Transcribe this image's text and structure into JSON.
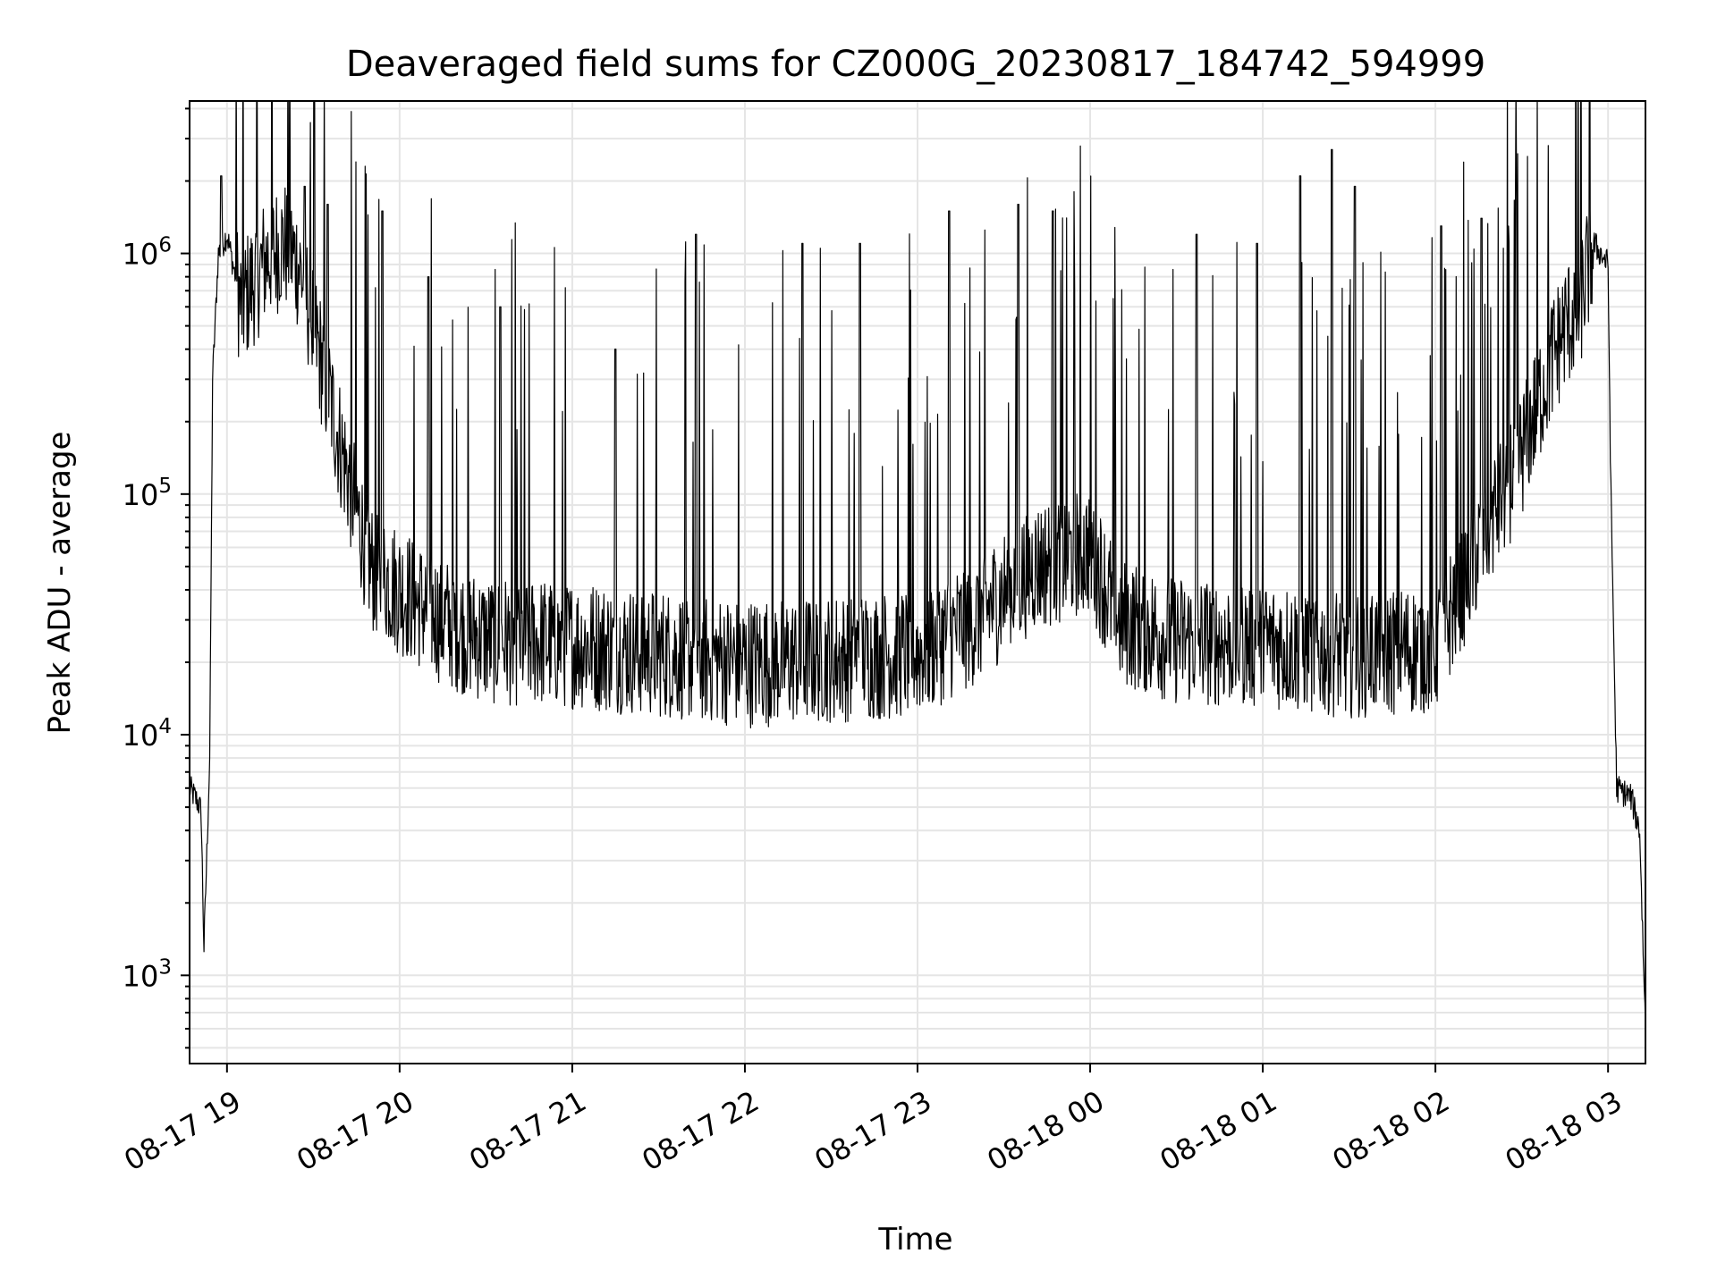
{
  "chart_data": {
    "type": "line",
    "title": "Deaveraged field sums for CZ000G_20230817_184742_594999",
    "xlabel": "Time",
    "ylabel": "Peak ADU - average",
    "yscale": "log",
    "xlim": [
      "2023-08-17 18:47",
      "2023-08-18 03:13"
    ],
    "ylim": [
      430,
      4300000
    ],
    "grid": true,
    "x_ticks": [
      "08-17 19",
      "08-17 20",
      "08-17 21",
      "08-17 22",
      "08-17 23",
      "08-18 00",
      "08-18 01",
      "08-18 02",
      "08-18 03"
    ],
    "y_ticks": [
      {
        "value": 1000,
        "base": "10",
        "exp": "3"
      },
      {
        "value": 10000,
        "base": "10",
        "exp": "4"
      },
      {
        "value": 100000,
        "base": "10",
        "exp": "5"
      },
      {
        "value": 1000000,
        "base": "10",
        "exp": "6"
      }
    ],
    "line_color": "#000000",
    "grid_color": "#e5e5e5",
    "series": [
      {
        "x": [
          "2023-08-17 18:47",
          "2023-08-17 18:50",
          "2023-08-17 18:51",
          "2023-08-17 18:52",
          "2023-08-17 18:54",
          "2023-08-17 18:55",
          "2023-08-17 18:57",
          "2023-08-17 19:00",
          "2023-08-17 19:05",
          "2023-08-17 19:10",
          "2023-08-17 19:15",
          "2023-08-17 19:20",
          "2023-08-17 19:25",
          "2023-08-17 19:30",
          "2023-08-17 19:40",
          "2023-08-17 19:50",
          "2023-08-17 20:00",
          "2023-08-17 20:15",
          "2023-08-17 20:30",
          "2023-08-17 21:00",
          "2023-08-17 21:30",
          "2023-08-17 22:00",
          "2023-08-17 22:30",
          "2023-08-17 23:00",
          "2023-08-17 23:20",
          "2023-08-17 23:40",
          "2023-08-18 00:00",
          "2023-08-18 00:10",
          "2023-08-18 00:30",
          "2023-08-18 01:00",
          "2023-08-18 01:30",
          "2023-08-18 02:00",
          "2023-08-18 02:15",
          "2023-08-18 02:30",
          "2023-08-18 02:40",
          "2023-08-18 02:45",
          "2023-08-18 02:50",
          "2023-08-18 02:55",
          "2023-08-18 03:00",
          "2023-08-18 03:01",
          "2023-08-18 03:03",
          "2023-08-18 03:08",
          "2023-08-18 03:11",
          "2023-08-18 03:13"
        ],
        "y": [
          6000,
          5200,
          4800,
          1300,
          8000,
          300000,
          1000000,
          1200000,
          600000,
          800000,
          1000000,
          1100000,
          900000,
          500000,
          150000,
          50000,
          40000,
          30000,
          25000,
          24000,
          22000,
          20000,
          21000,
          22000,
          30000,
          50000,
          60000,
          30000,
          25000,
          24000,
          22000,
          23000,
          60000,
          150000,
          350000,
          500000,
          600000,
          1100000,
          900000,
          100000,
          6000,
          5500,
          4000,
          600
        ],
        "spikes": [
          [
            "2023-08-17 18:58",
            2100000
          ],
          [
            "2023-08-17 19:27",
            1900000
          ],
          [
            "2023-08-17 19:35",
            1600000
          ],
          [
            "2023-08-17 19:54",
            1500000
          ],
          [
            "2023-08-17 20:10",
            800000
          ],
          [
            "2023-08-17 20:35",
            600000
          ],
          [
            "2023-08-17 21:15",
            400000
          ],
          [
            "2023-08-17 21:43",
            1200000
          ],
          [
            "2023-08-17 22:20",
            1100000
          ],
          [
            "2023-08-17 22:40",
            1100000
          ],
          [
            "2023-08-17 23:11",
            1500000
          ],
          [
            "2023-08-17 23:35",
            1600000
          ],
          [
            "2023-08-17 23:47",
            1500000
          ],
          [
            "2023-08-18 00:37",
            1200000
          ],
          [
            "2023-08-18 00:58",
            1100000
          ],
          [
            "2023-08-18 01:13",
            2100000
          ],
          [
            "2023-08-18 01:24",
            2700000
          ],
          [
            "2023-08-18 01:32",
            1900000
          ],
          [
            "2023-08-18 02:02",
            1300000
          ],
          [
            "2023-08-18 02:16",
            1400000
          ],
          [
            "2023-08-18 02:28",
            1700000
          ]
        ]
      }
    ]
  }
}
